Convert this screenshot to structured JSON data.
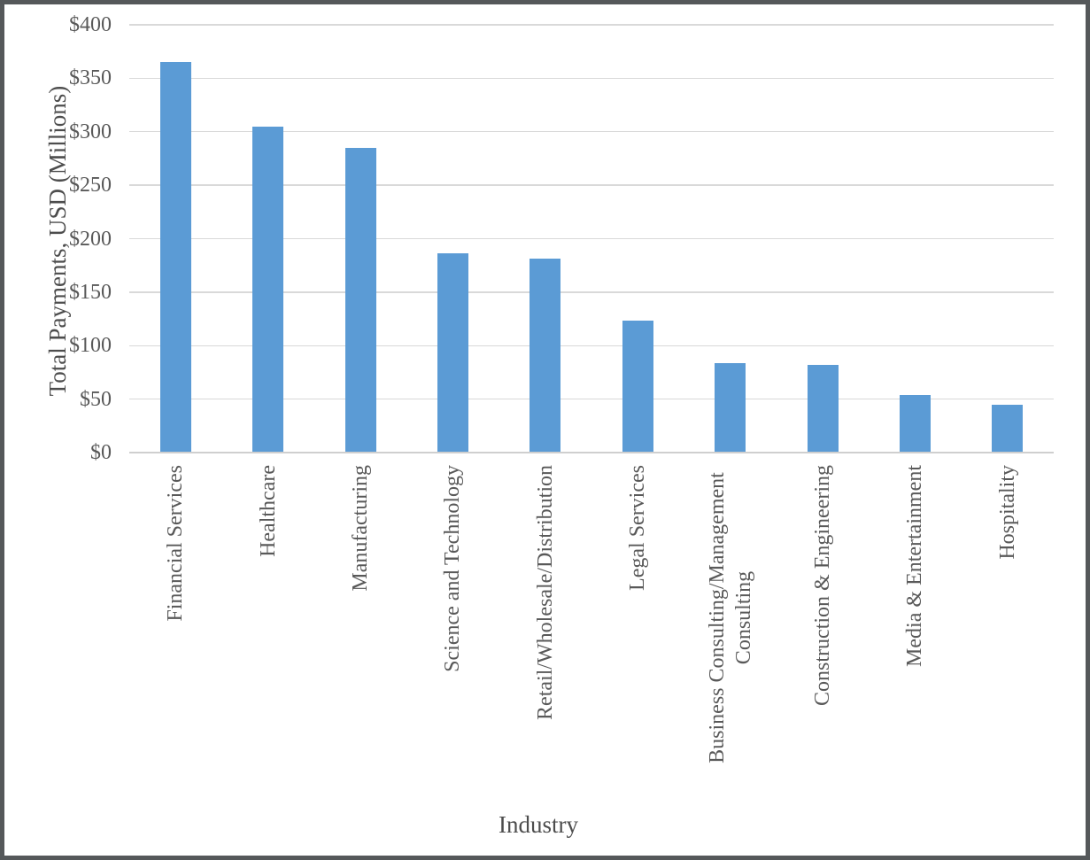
{
  "chart_data": {
    "type": "bar",
    "title": "",
    "xlabel": "Industry",
    "ylabel": "Total Payments, USD (Millions)",
    "categories": [
      "Financial Services",
      "Healthcare",
      "Manufacturing",
      "Science and Technology",
      "Retail/Wholesale/Distribution",
      "Legal Services",
      "Business Consulting/Management Consulting",
      "Construction & Engineering",
      "Media & Entertainment",
      "Hospitality"
    ],
    "values": [
      365,
      305,
      285,
      186,
      181,
      123,
      84,
      82,
      54,
      45
    ],
    "ylim": [
      0,
      400
    ],
    "ytick_step": 50,
    "ytick_labels": [
      "$0",
      "$50",
      "$100",
      "$150",
      "$200",
      "$250",
      "$300",
      "$350",
      "$400"
    ],
    "grid": true,
    "legend": "none",
    "bar_color": "#5B9BD5",
    "gridline_color": "#D9D9D9",
    "axis_line_color": "#CFCFCF",
    "tick_text_color": "#595959",
    "title_text_color": "#4D4D4D",
    "frame_color": "#55585A"
  }
}
